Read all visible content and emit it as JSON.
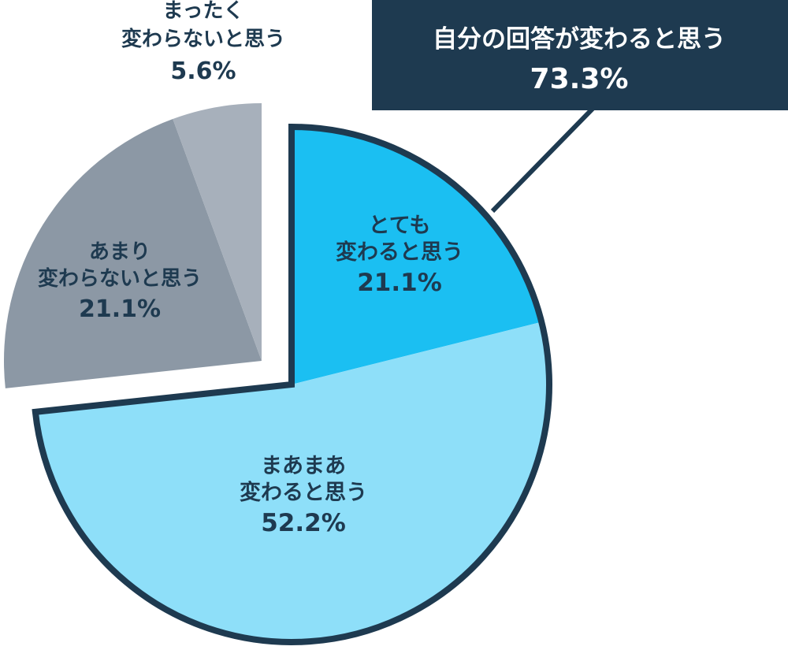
{
  "chart_data": {
    "type": "pie",
    "slices": [
      {
        "label": "とても\n変わると思う",
        "value": 21.1,
        "value_label": "21.1%",
        "color": "#1bbff2",
        "group": "change"
      },
      {
        "label": "まあまあ\n変わると思う",
        "value": 52.2,
        "value_label": "52.2%",
        "color": "#8edff9",
        "group": "change"
      },
      {
        "label": "あまり\n変わらないと思う",
        "value": 21.1,
        "value_label": "21.1%",
        "color": "#8c98a5",
        "group": "nochange"
      },
      {
        "label": "まったく\n変わらないと思う",
        "value": 5.6,
        "value_label": "5.6%",
        "color": "#a7b0bb",
        "group": "nochange"
      }
    ],
    "callout": {
      "title": "自分の回答が変わると思う",
      "value_label": "73.3%"
    },
    "colors": {
      "outline": "#1e3a50",
      "callout_bg": "#1e3a50",
      "callout_text": "#ffffff",
      "label_text": "#1e3a50"
    }
  }
}
